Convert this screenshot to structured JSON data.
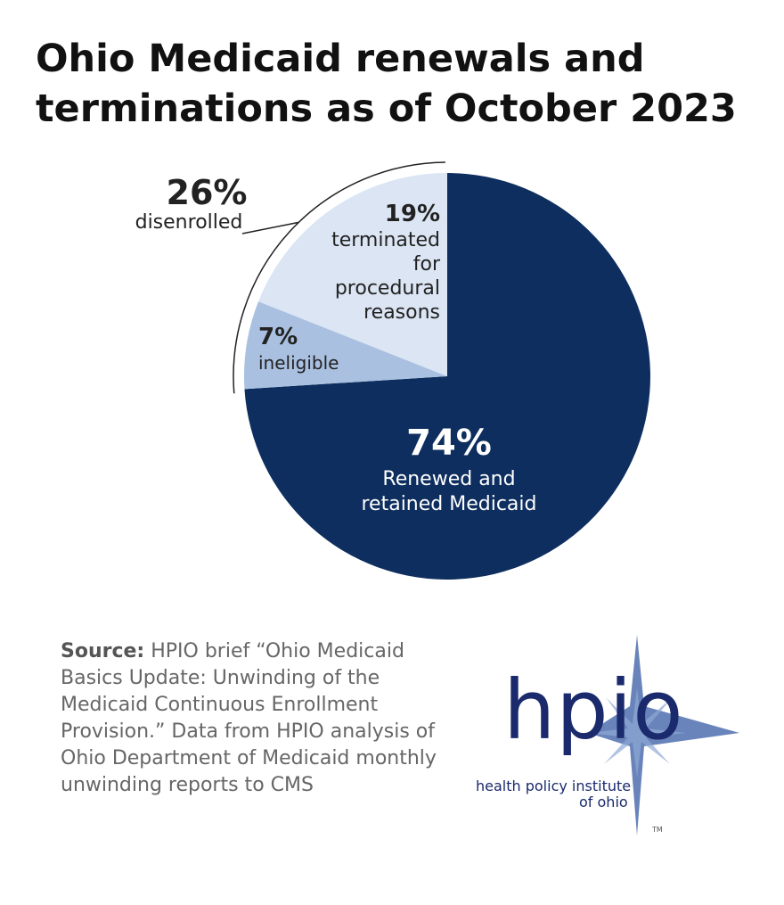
{
  "title": {
    "line1": "Ohio Medicaid renewals and",
    "line2": "terminations as of October 2023"
  },
  "chart_data": {
    "type": "pie",
    "slices": [
      {
        "pct": "74%",
        "value": 74,
        "label_lines": [
          "Renewed and",
          "retained Medicaid"
        ],
        "color": "#0d2e5e"
      },
      {
        "pct": "7%",
        "value": 7,
        "label_lines": [
          "ineligible"
        ],
        "color": "#a9c0e0"
      },
      {
        "pct": "19%",
        "value": 19,
        "label_lines": [
          "terminated",
          "for",
          "procedural",
          "reasons"
        ],
        "color": "#dbe5f3"
      }
    ],
    "group_callout": {
      "pct": "26%",
      "value": 26,
      "label": "disenrolled",
      "groups_slices": [
        "7%",
        "19%"
      ]
    }
  },
  "source": {
    "prefix": "Source:",
    "text": "HPIO brief “Ohio Medicaid Basics Update: Unwinding of the Medicaid Continuous Enrollment Provision.” Data from HPIO analysis of Ohio Department of Medicaid monthly unwinding reports to CMS"
  },
  "logo": {
    "letters": "hpio",
    "name_line1": "health policy institute",
    "name_line2": "of ohio",
    "tm": "TM",
    "star_color": "#4f6fae",
    "text_color": "#1a2a6c"
  }
}
